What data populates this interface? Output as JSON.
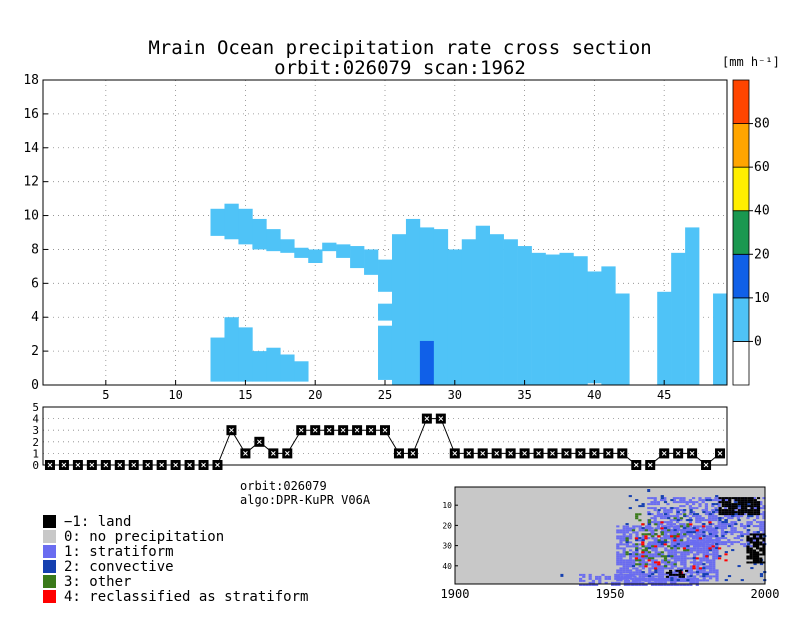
{
  "title": {
    "line1": "Mrain Ocean precipitation rate cross section",
    "line2": "orbit:026079    scan:1962"
  },
  "info": {
    "orbit": "orbit:026079",
    "algo": "algo:DPR-KuPR V06A"
  },
  "chart_data": [
    {
      "type": "heatmap",
      "title": "Mrain Ocean precipitation rate cross section",
      "xlim": [
        1,
        49
      ],
      "ylim": [
        0,
        18
      ],
      "xticks": [
        5,
        10,
        15,
        20,
        25,
        30,
        35,
        40,
        45
      ],
      "yticks": [
        0,
        2,
        4,
        6,
        8,
        10,
        12,
        14,
        16,
        18
      ],
      "grid": true,
      "colorbar": {
        "unit": "[mm h⁻¹]",
        "tick_labels": [
          "0",
          "10",
          "20",
          "40",
          "60",
          "80"
        ],
        "colors": [
          "#ffffff",
          "#4fc3f7",
          "#1060e8",
          "#1a9850",
          "#ffee00",
          "#ffa500",
          "#ff4500"
        ]
      },
      "rain_columns": [
        {
          "x": 13,
          "top": 10.4,
          "bottom": 8.8,
          "gaps": [],
          "lower": [
            0.2,
            2.8
          ]
        },
        {
          "x": 14,
          "top": 10.7,
          "bottom": 8.6,
          "gaps": [],
          "lower": [
            0.2,
            4.0
          ]
        },
        {
          "x": 15,
          "top": 10.4,
          "bottom": 8.3,
          "gaps": [],
          "lower": [
            0.2,
            3.4
          ]
        },
        {
          "x": 16,
          "top": 9.8,
          "bottom": 8.0,
          "gaps": [],
          "lower": [
            0.2,
            2.0
          ]
        },
        {
          "x": 17,
          "top": 9.2,
          "bottom": 7.9,
          "gaps": [],
          "lower": [
            0.2,
            2.2
          ]
        },
        {
          "x": 18,
          "top": 8.6,
          "bottom": 7.8,
          "gaps": [],
          "lower": [
            0.2,
            1.8
          ]
        },
        {
          "x": 19,
          "top": 8.1,
          "bottom": 7.5,
          "gaps": [],
          "lower": [
            0.2,
            1.4
          ]
        },
        {
          "x": 20,
          "top": 8.0,
          "bottom": 7.2,
          "gaps": [],
          "lower": null
        },
        {
          "x": 21,
          "top": 8.4,
          "bottom": 7.9,
          "gaps": [],
          "lower": null
        },
        {
          "x": 22,
          "top": 8.3,
          "bottom": 7.5,
          "gaps": [],
          "lower": null
        },
        {
          "x": 23,
          "top": 8.2,
          "bottom": 6.9,
          "gaps": [],
          "lower": null
        },
        {
          "x": 24,
          "top": 8.0,
          "bottom": 6.5,
          "gaps": [],
          "lower": null
        },
        {
          "x": 25,
          "top": 7.4,
          "bottom": 0.3,
          "gaps": [
            [
              5.5,
              4.8
            ],
            [
              3.8,
              3.5
            ]
          ],
          "lower": null
        },
        {
          "x": 26,
          "top": 8.9,
          "bottom": 0.0,
          "gaps": [],
          "lower": null
        },
        {
          "x": 27,
          "top": 9.8,
          "bottom": 0.0,
          "gaps": [],
          "lower": null
        },
        {
          "x": 28,
          "top": 9.3,
          "bottom": 0.0,
          "gaps": [],
          "lower": null
        },
        {
          "x": 29,
          "top": 9.2,
          "bottom": 0.0,
          "gaps": [],
          "lower": null
        },
        {
          "x": 30,
          "top": 8.0,
          "bottom": 0.0,
          "gaps": [],
          "lower": null
        },
        {
          "x": 31,
          "top": 8.6,
          "bottom": 0.0,
          "gaps": [],
          "lower": null
        },
        {
          "x": 32,
          "top": 9.4,
          "bottom": 0.0,
          "gaps": [],
          "lower": null
        },
        {
          "x": 33,
          "top": 8.9,
          "bottom": 0.0,
          "gaps": [],
          "lower": null
        },
        {
          "x": 34,
          "top": 8.6,
          "bottom": 0.0,
          "gaps": [],
          "lower": null
        },
        {
          "x": 35,
          "top": 8.2,
          "bottom": 0.0,
          "gaps": [],
          "lower": null
        },
        {
          "x": 36,
          "top": 7.8,
          "bottom": 0.0,
          "gaps": [],
          "lower": null
        },
        {
          "x": 37,
          "top": 7.7,
          "bottom": 0.0,
          "gaps": [],
          "lower": null
        },
        {
          "x": 38,
          "top": 7.8,
          "bottom": 0.0,
          "gaps": [],
          "lower": null
        },
        {
          "x": 39,
          "top": 7.6,
          "bottom": 0.0,
          "gaps": [],
          "lower": null
        },
        {
          "x": 40,
          "top": 6.7,
          "bottom": 0.1,
          "gaps": [],
          "lower": null
        },
        {
          "x": 41,
          "top": 7.0,
          "bottom": 0.0,
          "gaps": [],
          "lower": null
        },
        {
          "x": 42,
          "top": 5.4,
          "bottom": 0.0,
          "gaps": [],
          "lower": null
        },
        {
          "x": 45,
          "top": 5.5,
          "bottom": 0.0,
          "gaps": [],
          "lower": null
        },
        {
          "x": 46,
          "top": 7.8,
          "bottom": 0.0,
          "gaps": [],
          "lower": null
        },
        {
          "x": 47,
          "top": 9.3,
          "bottom": 0.0,
          "gaps": [],
          "lower": null
        },
        {
          "x": 49,
          "top": 5.4,
          "bottom": 0.0,
          "gaps": [],
          "lower": null
        }
      ],
      "convective_cells": [
        {
          "x": 28,
          "top": 2.6,
          "bottom": 0.0
        }
      ]
    },
    {
      "type": "line",
      "xlim": [
        1,
        49
      ],
      "ylim": [
        0,
        5
      ],
      "yticks": [
        0,
        1,
        2,
        3,
        4,
        5
      ],
      "grid": true,
      "series": [
        {
          "x": [
            1,
            2,
            3,
            4,
            5,
            6,
            7,
            8,
            9,
            10,
            11,
            12,
            13,
            14,
            15,
            16,
            17,
            18,
            19,
            20,
            21,
            22,
            23,
            24,
            25,
            26,
            27,
            28,
            29,
            30,
            31,
            32,
            33,
            34,
            35,
            36,
            37,
            38,
            39,
            40,
            41,
            42,
            43,
            44,
            45,
            46,
            47,
            48,
            49
          ],
          "values": [
            0,
            0,
            0,
            0,
            0,
            0,
            0,
            0,
            0,
            0,
            0,
            0,
            0,
            3,
            1,
            2,
            1,
            1,
            3,
            3,
            3,
            3,
            3,
            3,
            3,
            1,
            1,
            4,
            4,
            1,
            1,
            1,
            1,
            1,
            1,
            1,
            1,
            1,
            1,
            1,
            1,
            1,
            0,
            0,
            1,
            1,
            1,
            0,
            1
          ]
        }
      ]
    },
    {
      "type": "heatmap",
      "xlim": [
        1900,
        2000
      ],
      "xticks": [
        1900,
        1950,
        2000
      ],
      "yticks": [
        10,
        20,
        30,
        40
      ],
      "ylim": [
        1,
        49
      ],
      "categories": [
        "-1: land",
        "0: no precipitation",
        "1: stratiform",
        "2: convective",
        "3: other",
        "4: reclassified as stratiform"
      ],
      "colors": [
        "#000000",
        "#c8c8c8",
        "#6a6cf0",
        "#1540b0",
        "#3a7a1a",
        "#ff0000"
      ]
    }
  ],
  "legend": [
    {
      "label": "−1: land",
      "color": "#000000"
    },
    {
      "label": "0: no precipitation",
      "color": "#c8c8c8"
    },
    {
      "label": "1: stratiform",
      "color": "#6a6cf0"
    },
    {
      "label": "2: convective",
      "color": "#1540b0"
    },
    {
      "label": "3: other",
      "color": "#3a7a1a"
    },
    {
      "label": "4: reclassified as stratiform",
      "color": "#ff0000"
    }
  ]
}
